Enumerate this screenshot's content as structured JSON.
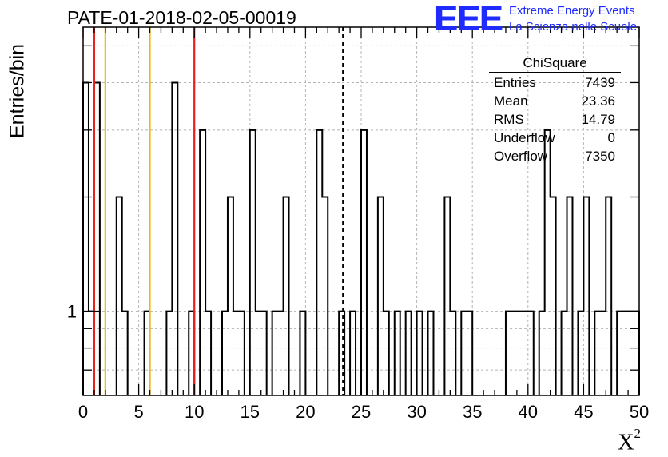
{
  "header": {
    "title": "PATE-01-2018-02-05-00019"
  },
  "logo": {
    "letters": "EEE",
    "line1": "Extreme Energy Events",
    "line2": "La Scienza nelle Scuole",
    "color": "#1f2bff"
  },
  "stats": {
    "title": "ChiSquare",
    "rows": [
      {
        "label": "Entries",
        "value": "7439"
      },
      {
        "label": "Mean",
        "value": "23.36"
      },
      {
        "label": "RMS",
        "value": "14.79"
      },
      {
        "label": "Underflow",
        "value": "0"
      },
      {
        "label": "Overflow",
        "value": "7350"
      }
    ]
  },
  "chart_data": {
    "type": "histogram",
    "title": "PATE-01-2018-02-05-00019",
    "xlabel": "X",
    "xlabel_sup": "2",
    "ylabel": "Entries/bin",
    "xlim": [
      0,
      50
    ],
    "ylim": [
      0.6,
      5.6
    ],
    "yscale": "log",
    "grid": true,
    "bin_width": 0.5,
    "xticks": [
      0,
      5,
      10,
      15,
      20,
      25,
      30,
      35,
      40,
      45,
      50
    ],
    "xtick_labels": [
      "0",
      "5",
      "10",
      "15",
      "20",
      "25",
      "30",
      "35",
      "40",
      "45",
      "50"
    ],
    "yticks": [
      1
    ],
    "ytick_labels": [
      "1"
    ],
    "bin_starts": [
      0.0,
      0.5,
      1.0,
      3.0,
      3.5,
      5.5,
      7.5,
      8.0,
      9.5,
      10.5,
      11.0,
      12.5,
      13.0,
      13.5,
      14.0,
      15.0,
      15.5,
      16.0,
      17.0,
      17.5,
      18.0,
      19.5,
      21.0,
      21.5,
      23.0,
      24.0,
      25.0,
      26.5,
      27.0,
      28.0,
      29.0,
      30.0,
      31.0,
      32.5,
      33.0,
      34.0,
      34.5,
      38.0,
      38.5,
      39.0,
      39.5,
      40.0,
      41.0,
      41.5,
      42.0,
      43.0,
      43.5,
      44.5,
      45.0,
      46.0,
      46.5,
      47.0,
      48.0,
      48.5,
      49.0,
      49.5
    ],
    "counts": [
      4,
      1,
      4,
      2,
      1,
      1,
      1,
      4,
      1,
      3,
      1,
      1,
      2,
      1,
      1,
      3,
      1,
      1,
      1,
      1,
      2,
      1,
      3,
      2,
      1,
      1,
      3,
      2,
      1,
      1,
      1,
      1,
      1,
      2,
      1,
      1,
      1,
      1,
      1,
      1,
      1,
      1,
      1,
      3,
      2,
      1,
      2,
      1,
      2,
      1,
      1,
      2,
      1,
      1,
      1,
      1
    ],
    "mean_line": 23.36,
    "vertical_lines": [
      {
        "x": 1,
        "color": "#e8201e"
      },
      {
        "x": 2,
        "color": "#f0b816"
      },
      {
        "x": 6,
        "color": "#f0b816"
      },
      {
        "x": 10,
        "color": "#e8201e"
      }
    ]
  }
}
